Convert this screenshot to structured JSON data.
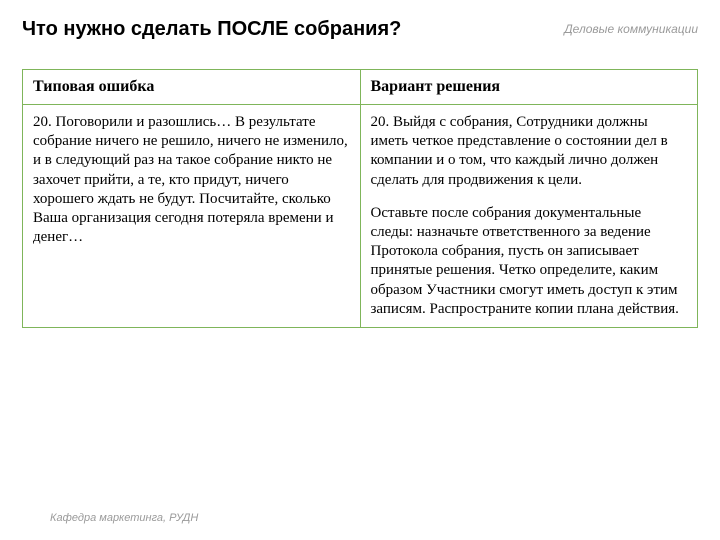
{
  "header": {
    "title": "Что нужно сделать ПОСЛЕ собрания?",
    "subtitle": "Деловые коммуникации"
  },
  "table": {
    "headers": {
      "col1": "Типовая ошибка",
      "col2": "Вариант решения"
    },
    "row": {
      "col1": "20. Поговорили и разошлись… В результате собрание ничего не решило, ничего не изменило, и в следующий раз на такое собрание никто не захочет прийти, а те, кто придут, ничего хорошего ждать не будут. Посчитайте, сколько Ваша организация сегодня потеряла времени и денег…",
      "col2_p1": "20. Выйдя с собрания, Сотрудники должны иметь четкое представление о состоянии дел в компании и о том, что каждый лично должен сделать для продвижения к цели.",
      "col2_p2": "Оставьте после собрания документальные следы: назначьте ответственного за ведение Протокола собрания, пусть он записывает принятые решения. Четко определите, каким образом Участники смогут иметь доступ к этим записям. Распространите копии плана действия."
    }
  },
  "footer": "Кафедра маркетинга, РУДН",
  "styling": {
    "border_color": "#7fb55a",
    "title_font": "Arial",
    "body_font": "Georgia",
    "title_size_pt": 20,
    "header_size_pt": 16,
    "body_size_pt": 15,
    "subtitle_color": "#9a9a9a",
    "background": "#ffffff"
  }
}
